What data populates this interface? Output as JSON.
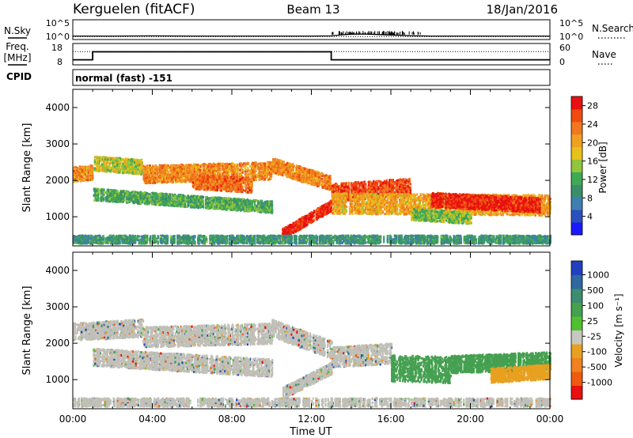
{
  "header": {
    "station": "Kerguelen (fitACF)",
    "beam": "Beam 13",
    "date": "18/Jan/2016"
  },
  "colors": {
    "power_scale": [
      "#1a1aff",
      "#2b4fbf",
      "#3f7fb0",
      "#3a8f6a",
      "#3faa55",
      "#8fc63a",
      "#e8c01a",
      "#f0a020",
      "#f07820",
      "#f04a10",
      "#e81010"
    ],
    "velocity_scale": [
      "#2040c0",
      "#3068a0",
      "#3d8c70",
      "#45a050",
      "#50c030",
      "#c8c8c0",
      "#e8a020",
      "#f08020",
      "#f05a10",
      "#e81010"
    ],
    "ground_scatter": "#c0c0b8"
  },
  "chart_data": [
    {
      "type": "line",
      "panel": "noise",
      "left_axis": {
        "label": "N.Sky",
        "tick_labels": [
          "10^5",
          "10^0"
        ]
      },
      "right_axis": {
        "label": "N.Search",
        "tick_labels": [
          "10^5",
          "10^0"
        ]
      },
      "x_range_hours": [
        0,
        24
      ],
      "series_nsky_log10": {
        "x": [
          0,
          2,
          4,
          6,
          8,
          10,
          12,
          13,
          13.5,
          14,
          14.5,
          15,
          15.5,
          16,
          16.5,
          17,
          18,
          20,
          22,
          24
        ],
        "y": [
          0.4,
          0.4,
          0.45,
          0.4,
          0.4,
          0.4,
          0.4,
          0.45,
          0.8,
          1.0,
          1.1,
          1.0,
          0.9,
          0.75,
          0.65,
          0.5,
          0.4,
          0.4,
          0.4,
          0.4
        ]
      },
      "series_nsearch_log10": {
        "x": [
          0,
          24
        ],
        "y": [
          0.2,
          0.2
        ]
      }
    },
    {
      "type": "line",
      "panel": "frequency",
      "left_axis": {
        "label": "Freq.",
        "unit": "[MHz]",
        "tick_labels": [
          "18",
          "8"
        ],
        "range": [
          8,
          18
        ]
      },
      "right_axis": {
        "label": "Nave",
        "tick_labels": [
          "60",
          "0"
        ],
        "range": [
          0,
          60
        ]
      },
      "series_freq_mhz": {
        "x": [
          0,
          1,
          1,
          13,
          13,
          24
        ],
        "y": [
          10,
          10,
          14.6,
          14.6,
          10,
          10
        ]
      },
      "series_nave": {
        "x": [
          0,
          24
        ],
        "y": [
          40,
          40
        ]
      }
    },
    {
      "type": "table",
      "panel": "cpid",
      "label": "CPID",
      "text": "normal (fast) -151"
    },
    {
      "type": "heatmap",
      "panel": "power",
      "ylabel": "Slant Range [km]",
      "ylim": [
        200,
        4500
      ],
      "yticks": [
        1000,
        2000,
        3000,
        4000
      ],
      "xlim_hours": [
        0,
        24
      ],
      "colorbar": {
        "label": "Power [dB]",
        "ticks": [
          4,
          8,
          12,
          16,
          20,
          24,
          28
        ],
        "range": [
          0,
          30
        ]
      },
      "bands": [
        {
          "x": [
            0,
            1
          ],
          "center": [
            2150,
            2200
          ],
          "width": 250,
          "value": 22
        },
        {
          "x": [
            1,
            3.5
          ],
          "center": [
            2450,
            2350
          ],
          "width": 250,
          "value": 16
        },
        {
          "x": [
            3.5,
            10
          ],
          "center": [
            2150,
            2250
          ],
          "width": 300,
          "value": 22
        },
        {
          "x": [
            6,
            9
          ],
          "center": [
            1950,
            1850
          ],
          "width": 250,
          "value": 24
        },
        {
          "x": [
            1,
            10
          ],
          "center": [
            1600,
            1250
          ],
          "width": 200,
          "value": 12
        },
        {
          "x": [
            10,
            13
          ],
          "center": [
            2400,
            1900
          ],
          "width": 250,
          "value": 22
        },
        {
          "x": [
            10.5,
            13
          ],
          "center": [
            500,
            1300
          ],
          "width": 180,
          "value": 28
        },
        {
          "x": [
            13,
            17
          ],
          "center": [
            1650,
            1800
          ],
          "width": 300,
          "value": 26
        },
        {
          "x": [
            13,
            24
          ],
          "center": [
            1350,
            1300
          ],
          "width": 350,
          "value": 20
        },
        {
          "x": [
            18,
            23.5
          ],
          "center": [
            1450,
            1300
          ],
          "width": 250,
          "value": 28
        },
        {
          "x": [
            17,
            20
          ],
          "center": [
            1050,
            950
          ],
          "width": 200,
          "value": 14
        },
        {
          "x": [
            0,
            24
          ],
          "center": [
            350,
            350
          ],
          "width": 150,
          "value": 10
        }
      ]
    },
    {
      "type": "heatmap",
      "panel": "velocity",
      "ylabel": "Slant Range [km]",
      "ylim": [
        200,
        4500
      ],
      "yticks": [
        1000,
        2000,
        3000,
        4000
      ],
      "xlim_hours": [
        0,
        24
      ],
      "xlabel": "Time UT",
      "xtick_labels": [
        "00:00",
        "04:00",
        "08:00",
        "12:00",
        "16:00",
        "20:00",
        "00:00"
      ],
      "colorbar": {
        "label": "Velocity [m s⁻¹]",
        "ticks": [
          1000,
          500,
          100,
          25,
          -25,
          -100,
          -500,
          -1000
        ]
      },
      "bands": [
        {
          "x": [
            0,
            3.5
          ],
          "center": [
            2300,
            2400
          ],
          "width": 300,
          "value": 0
        },
        {
          "x": [
            3.5,
            10
          ],
          "center": [
            2150,
            2250
          ],
          "width": 350,
          "value": 0
        },
        {
          "x": [
            1,
            10
          ],
          "center": [
            1600,
            1300
          ],
          "width": 300,
          "value": 0
        },
        {
          "x": [
            10,
            13
          ],
          "center": [
            2400,
            1800
          ],
          "width": 300,
          "value": 0
        },
        {
          "x": [
            10.5,
            13
          ],
          "center": [
            600,
            1300
          ],
          "width": 200,
          "value": 0
        },
        {
          "x": [
            13,
            16
          ],
          "center": [
            1600,
            1700
          ],
          "width": 350,
          "value": 0
        },
        {
          "x": [
            16,
            19
          ],
          "center": [
            1300,
            1250
          ],
          "width": 450,
          "value": 300
        },
        {
          "x": [
            19,
            24
          ],
          "center": [
            1400,
            1500
          ],
          "width": 300,
          "value": 120
        },
        {
          "x": [
            21,
            24
          ],
          "center": [
            1100,
            1200
          ],
          "width": 250,
          "value": -200
        },
        {
          "x": [
            0,
            24
          ],
          "center": [
            350,
            350
          ],
          "width": 150,
          "value": 0
        }
      ]
    }
  ]
}
